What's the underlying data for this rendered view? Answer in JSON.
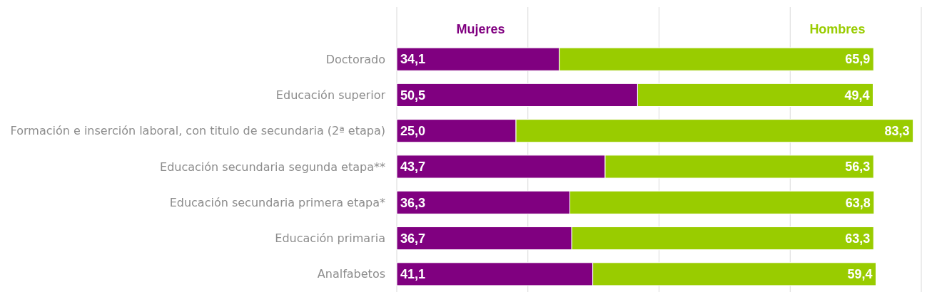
{
  "chart_data": {
    "type": "bar",
    "orientation": "horizontal",
    "stacked": true,
    "categories": [
      "Doctorado",
      "Educación superior",
      "Formación e inserción laboral, con titulo de secundaria (2ª etapa)",
      "Educación secundaria segunda etapa**",
      "Educación secundaria primera etapa*",
      "Educación primaria",
      "Analfabetos"
    ],
    "series": [
      {
        "name": "Mujeres",
        "color": "#800080",
        "values": [
          34.1,
          50.5,
          25.0,
          43.7,
          36.3,
          36.7,
          41.1
        ],
        "value_labels": [
          "34,1",
          "50,5",
          "25,0",
          "43,7",
          "36,3",
          "36,7",
          "41,1"
        ]
      },
      {
        "name": "Hombres",
        "color": "#99cc00",
        "values": [
          65.9,
          49.4,
          83.3,
          56.3,
          63.8,
          63.3,
          59.4
        ],
        "value_labels": [
          "65,9",
          "49,4",
          "83,3",
          "56,3",
          "63,8",
          "63,3",
          "59,4"
        ]
      }
    ],
    "xlim": [
      0,
      110
    ],
    "xticks": [
      {
        "value": 0,
        "label": null
      },
      {
        "value": 27.5,
        "label": null
      },
      {
        "value": 55,
        "label": null
      },
      {
        "value": 82.5,
        "label": null
      },
      {
        "value": 110,
        "label": null
      }
    ],
    "grid": "x",
    "legend": "top",
    "tick_labels": "y"
  }
}
